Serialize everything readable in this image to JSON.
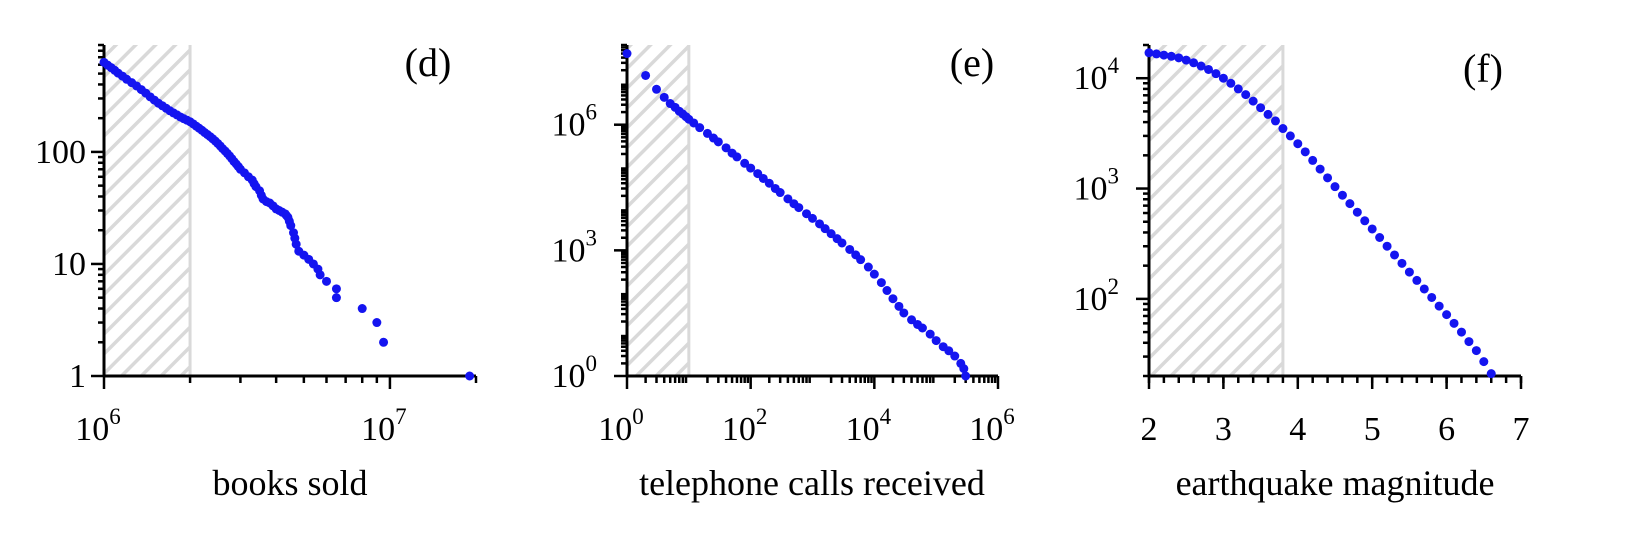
{
  "colors": {
    "points": "#1414f0",
    "hatch_stroke": "#d9d9d9",
    "axis": "#000000"
  },
  "chart_data": [
    {
      "type": "scatter",
      "panel_label": "(d)",
      "xlabel": "books sold",
      "ylabel": "",
      "xscale": "log",
      "yscale": "log",
      "xlim": [
        1000000,
        20000000
      ],
      "ylim": [
        1,
        900
      ],
      "shaded_region": [
        1000000,
        2000000
      ],
      "x_ticks": [
        {
          "value": 1000000,
          "base": "10",
          "exp": "6"
        },
        {
          "value": 10000000,
          "base": "10",
          "exp": "7"
        }
      ],
      "y_ticks": [
        {
          "value": 1,
          "label": "1"
        },
        {
          "value": 10,
          "label": "10"
        },
        {
          "value": 100,
          "label": "100"
        }
      ],
      "points": [
        [
          1000000,
          630
        ],
        [
          1030000,
          595
        ],
        [
          1060000,
          565
        ],
        [
          1090000,
          535
        ],
        [
          1120000,
          505
        ],
        [
          1160000,
          475
        ],
        [
          1200000,
          445
        ],
        [
          1250000,
          415
        ],
        [
          1300000,
          388
        ],
        [
          1350000,
          360
        ],
        [
          1400000,
          335
        ],
        [
          1450000,
          310
        ],
        [
          1500000,
          290
        ],
        [
          1550000,
          272
        ],
        [
          1600000,
          258
        ],
        [
          1650000,
          245
        ],
        [
          1700000,
          233
        ],
        [
          1750000,
          223
        ],
        [
          1800000,
          214
        ],
        [
          1850000,
          205
        ],
        [
          1900000,
          198
        ],
        [
          1950000,
          192
        ],
        [
          2000000,
          186
        ],
        [
          2050000,
          178
        ],
        [
          2100000,
          170
        ],
        [
          2150000,
          163
        ],
        [
          2200000,
          156
        ],
        [
          2250000,
          149
        ],
        [
          2300000,
          143
        ],
        [
          2350000,
          137
        ],
        [
          2400000,
          131
        ],
        [
          2450000,
          125
        ],
        [
          2500000,
          119
        ],
        [
          2550000,
          113
        ],
        [
          2600000,
          107
        ],
        [
          2650000,
          102
        ],
        [
          2700000,
          97
        ],
        [
          2750000,
          92
        ],
        [
          2800000,
          87
        ],
        [
          2850000,
          82
        ],
        [
          2900000,
          78
        ],
        [
          2950000,
          74
        ],
        [
          3000000,
          70
        ],
        [
          3100000,
          65
        ],
        [
          3200000,
          60
        ],
        [
          3300000,
          56
        ],
        [
          3350000,
          52
        ],
        [
          3400000,
          49
        ],
        [
          3500000,
          45
        ],
        [
          3550000,
          41
        ],
        [
          3600000,
          38
        ],
        [
          3700000,
          36
        ],
        [
          3800000,
          35
        ],
        [
          3900000,
          33
        ],
        [
          4000000,
          31
        ],
        [
          4100000,
          30
        ],
        [
          4200000,
          29
        ],
        [
          4300000,
          28
        ],
        [
          4350000,
          27
        ],
        [
          4400000,
          26
        ],
        [
          4450000,
          24
        ],
        [
          4500000,
          22
        ],
        [
          4600000,
          19
        ],
        [
          4650000,
          17
        ],
        [
          4700000,
          15
        ],
        [
          4800000,
          13
        ],
        [
          5000000,
          12
        ],
        [
          5200000,
          11
        ],
        [
          5400000,
          10
        ],
        [
          5600000,
          9
        ],
        [
          5700000,
          8
        ],
        [
          6000000,
          7
        ],
        [
          6500000,
          6
        ],
        [
          6500000,
          5
        ],
        [
          8000000,
          4
        ],
        [
          9000000,
          3
        ],
        [
          9500000,
          2
        ],
        [
          19000000,
          1
        ]
      ]
    },
    {
      "type": "scatter",
      "panel_label": "(e)",
      "xlabel": "telephone calls received",
      "ylabel": "",
      "xscale": "log",
      "yscale": "log",
      "xlim": [
        1,
        1000000
      ],
      "ylim": [
        1,
        80000000
      ],
      "shaded_region": [
        1,
        10
      ],
      "x_ticks": [
        {
          "value": 1,
          "base": "10",
          "exp": "0"
        },
        {
          "value": 100,
          "base": "10",
          "exp": "2"
        },
        {
          "value": 10000,
          "base": "10",
          "exp": "4"
        },
        {
          "value": 1000000,
          "base": "10",
          "exp": "6"
        }
      ],
      "y_ticks": [
        {
          "value": 1,
          "base": "10",
          "exp": "0"
        },
        {
          "value": 1000,
          "base": "10",
          "exp": "3"
        },
        {
          "value": 1000000,
          "base": "10",
          "exp": "6"
        }
      ],
      "points": [
        [
          1,
          50000000
        ],
        [
          2,
          15000000
        ],
        [
          3,
          7000000
        ],
        [
          4,
          4500000
        ],
        [
          5,
          3200000
        ],
        [
          6,
          2600000
        ],
        [
          7,
          2100000
        ],
        [
          8,
          1800000
        ],
        [
          9,
          1550000
        ],
        [
          10,
          1350000
        ],
        [
          12,
          1100000
        ],
        [
          15,
          850000
        ],
        [
          20,
          620000
        ],
        [
          25,
          480000
        ],
        [
          30,
          390000
        ],
        [
          40,
          280000
        ],
        [
          50,
          210000
        ],
        [
          60,
          170000
        ],
        [
          80,
          120000
        ],
        [
          100,
          92000
        ],
        [
          130,
          68000
        ],
        [
          160,
          52000
        ],
        [
          200,
          40000
        ],
        [
          250,
          30000
        ],
        [
          300,
          24000
        ],
        [
          400,
          17000
        ],
        [
          500,
          13000
        ],
        [
          600,
          10500
        ],
        [
          800,
          7500
        ],
        [
          1000,
          5800
        ],
        [
          1300,
          4300
        ],
        [
          1600,
          3300
        ],
        [
          2000,
          2500
        ],
        [
          2500,
          1900
        ],
        [
          3000,
          1500
        ],
        [
          4000,
          1050
        ],
        [
          5000,
          780
        ],
        [
          6000,
          600
        ],
        [
          8000,
          400
        ],
        [
          10000,
          270
        ],
        [
          13000,
          170
        ],
        [
          16000,
          110
        ],
        [
          20000,
          70
        ],
        [
          25000,
          46
        ],
        [
          30000,
          32
        ],
        [
          40000,
          22
        ],
        [
          50000,
          17
        ],
        [
          60000,
          14
        ],
        [
          80000,
          10
        ],
        [
          100000,
          7
        ],
        [
          130000,
          5
        ],
        [
          160000,
          4
        ],
        [
          200000,
          3
        ],
        [
          250000,
          2
        ],
        [
          280000,
          1.5
        ],
        [
          300000,
          1
        ]
      ]
    },
    {
      "type": "scatter",
      "panel_label": "(f)",
      "xlabel": "earthquake magnitude",
      "ylabel": "",
      "xscale": "linear",
      "yscale": "log",
      "xlim": [
        2,
        7
      ],
      "ylim": [
        20,
        20000
      ],
      "shaded_region": [
        2,
        3.8
      ],
      "x_ticks": [
        {
          "value": 2,
          "label": "2"
        },
        {
          "value": 3,
          "label": "3"
        },
        {
          "value": 4,
          "label": "4"
        },
        {
          "value": 5,
          "label": "5"
        },
        {
          "value": 6,
          "label": "6"
        },
        {
          "value": 7,
          "label": "7"
        }
      ],
      "y_ticks": [
        {
          "value": 100,
          "base": "10",
          "exp": "2"
        },
        {
          "value": 1000,
          "base": "10",
          "exp": "3"
        },
        {
          "value": 10000,
          "base": "10",
          "exp": "4"
        }
      ],
      "points": [
        [
          2.0,
          17000
        ],
        [
          2.1,
          16600
        ],
        [
          2.2,
          16200
        ],
        [
          2.3,
          15800
        ],
        [
          2.4,
          15300
        ],
        [
          2.5,
          14600
        ],
        [
          2.6,
          13800
        ],
        [
          2.7,
          12900
        ],
        [
          2.8,
          12000
        ],
        [
          2.9,
          11000
        ],
        [
          3.0,
          10000
        ],
        [
          3.1,
          9000
        ],
        [
          3.2,
          8000
        ],
        [
          3.3,
          7100
        ],
        [
          3.4,
          6200
        ],
        [
          3.5,
          5400
        ],
        [
          3.6,
          4700
        ],
        [
          3.7,
          4100
        ],
        [
          3.8,
          3500
        ],
        [
          3.9,
          3000
        ],
        [
          4.0,
          2550
        ],
        [
          4.1,
          2150
        ],
        [
          4.2,
          1800
        ],
        [
          4.3,
          1500
        ],
        [
          4.4,
          1250
        ],
        [
          4.5,
          1040
        ],
        [
          4.6,
          870
        ],
        [
          4.7,
          730
        ],
        [
          4.8,
          610
        ],
        [
          4.9,
          510
        ],
        [
          5.0,
          430
        ],
        [
          5.1,
          360
        ],
        [
          5.2,
          300
        ],
        [
          5.3,
          250
        ],
        [
          5.4,
          210
        ],
        [
          5.5,
          175
        ],
        [
          5.6,
          147
        ],
        [
          5.7,
          123
        ],
        [
          5.8,
          103
        ],
        [
          5.9,
          86
        ],
        [
          6.0,
          72
        ],
        [
          6.1,
          60
        ],
        [
          6.2,
          50
        ],
        [
          6.3,
          41
        ],
        [
          6.4,
          34
        ],
        [
          6.5,
          27
        ],
        [
          6.6,
          21
        ]
      ]
    }
  ]
}
